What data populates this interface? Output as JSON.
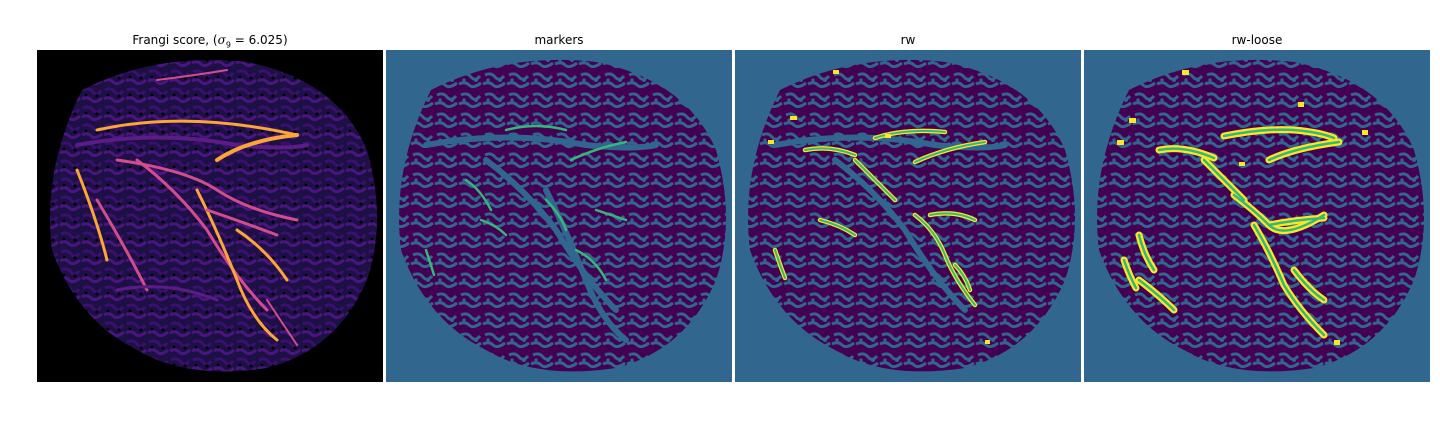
{
  "figure": {
    "panels": [
      {
        "id": "frangi",
        "title_prefix": "Frangi score, (",
        "title_sigma": "σ",
        "title_sub": "9",
        "title_suffix": " = 6.025)",
        "colormap": "magma",
        "background": "#000000"
      },
      {
        "id": "markers",
        "title": "markers",
        "colormap": "viridis",
        "background": "#31668e"
      },
      {
        "id": "rw",
        "title": "rw",
        "colormap": "viridis",
        "background": "#31668e"
      },
      {
        "id": "rw-loose",
        "title": "rw-loose",
        "colormap": "viridis",
        "background": "#31668e"
      }
    ],
    "colors": {
      "dark_purple": "#440154",
      "teal_blue": "#31668e",
      "green": "#35b779",
      "yellow": "#fde725",
      "magma_orange": "#fca636",
      "magma_pink": "#d14d8b",
      "magma_purple": "#5c1c85"
    }
  }
}
